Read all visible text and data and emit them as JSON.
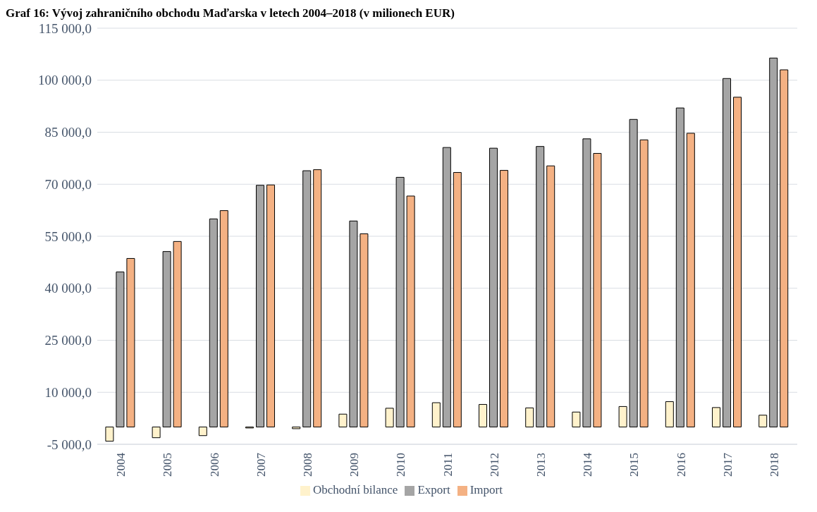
{
  "chart_data": {
    "type": "bar",
    "title": "Graf 16: Vývoj zahraničního obchodu Maďarska v letech 2004–2018 (v milionech EUR)",
    "categories": [
      "2004",
      "2005",
      "2006",
      "2007",
      "2008",
      "2009",
      "2010",
      "2011",
      "2012",
      "2013",
      "2014",
      "2015",
      "2016",
      "2017",
      "2018"
    ],
    "series": [
      {
        "name": "Obchodní bilance",
        "color": "#fff2cc",
        "values": [
          -4100.0,
          -3100.0,
          -2500.0,
          -300,
          -500,
          3700,
          5400,
          7000,
          6500,
          5500,
          4300,
          5900,
          7300,
          5600,
          3400
        ]
      },
      {
        "name": "Export",
        "color": "#a5a5a5",
        "values": [
          44700,
          50600,
          60000,
          69700,
          73900,
          59400,
          72000,
          80600,
          80400,
          80900,
          83100,
          88700,
          92000,
          100500,
          106400
        ]
      },
      {
        "name": "Import",
        "color": "#f4b183",
        "values": [
          48600,
          53500,
          62400,
          69800,
          74200,
          55700,
          66600,
          73400,
          74000,
          75300,
          78900,
          82800,
          84700,
          95100,
          103000
        ]
      }
    ],
    "ylim": [
      -5000,
      115000
    ],
    "yticks": [
      {
        "value": -5000,
        "label": "-5 000,0"
      },
      {
        "value": 10000,
        "label": "10 000,0"
      },
      {
        "value": 25000,
        "label": "25 000,0"
      },
      {
        "value": 40000,
        "label": "40 000,0"
      },
      {
        "value": 55000,
        "label": "55 000,0"
      },
      {
        "value": 70000,
        "label": "70 000,0"
      },
      {
        "value": 85000,
        "label": "85 000,0"
      },
      {
        "value": 100000,
        "label": "100 000,0"
      },
      {
        "value": 115000,
        "label": "115 000,0"
      }
    ],
    "grid": "y",
    "legend": "bottom"
  }
}
